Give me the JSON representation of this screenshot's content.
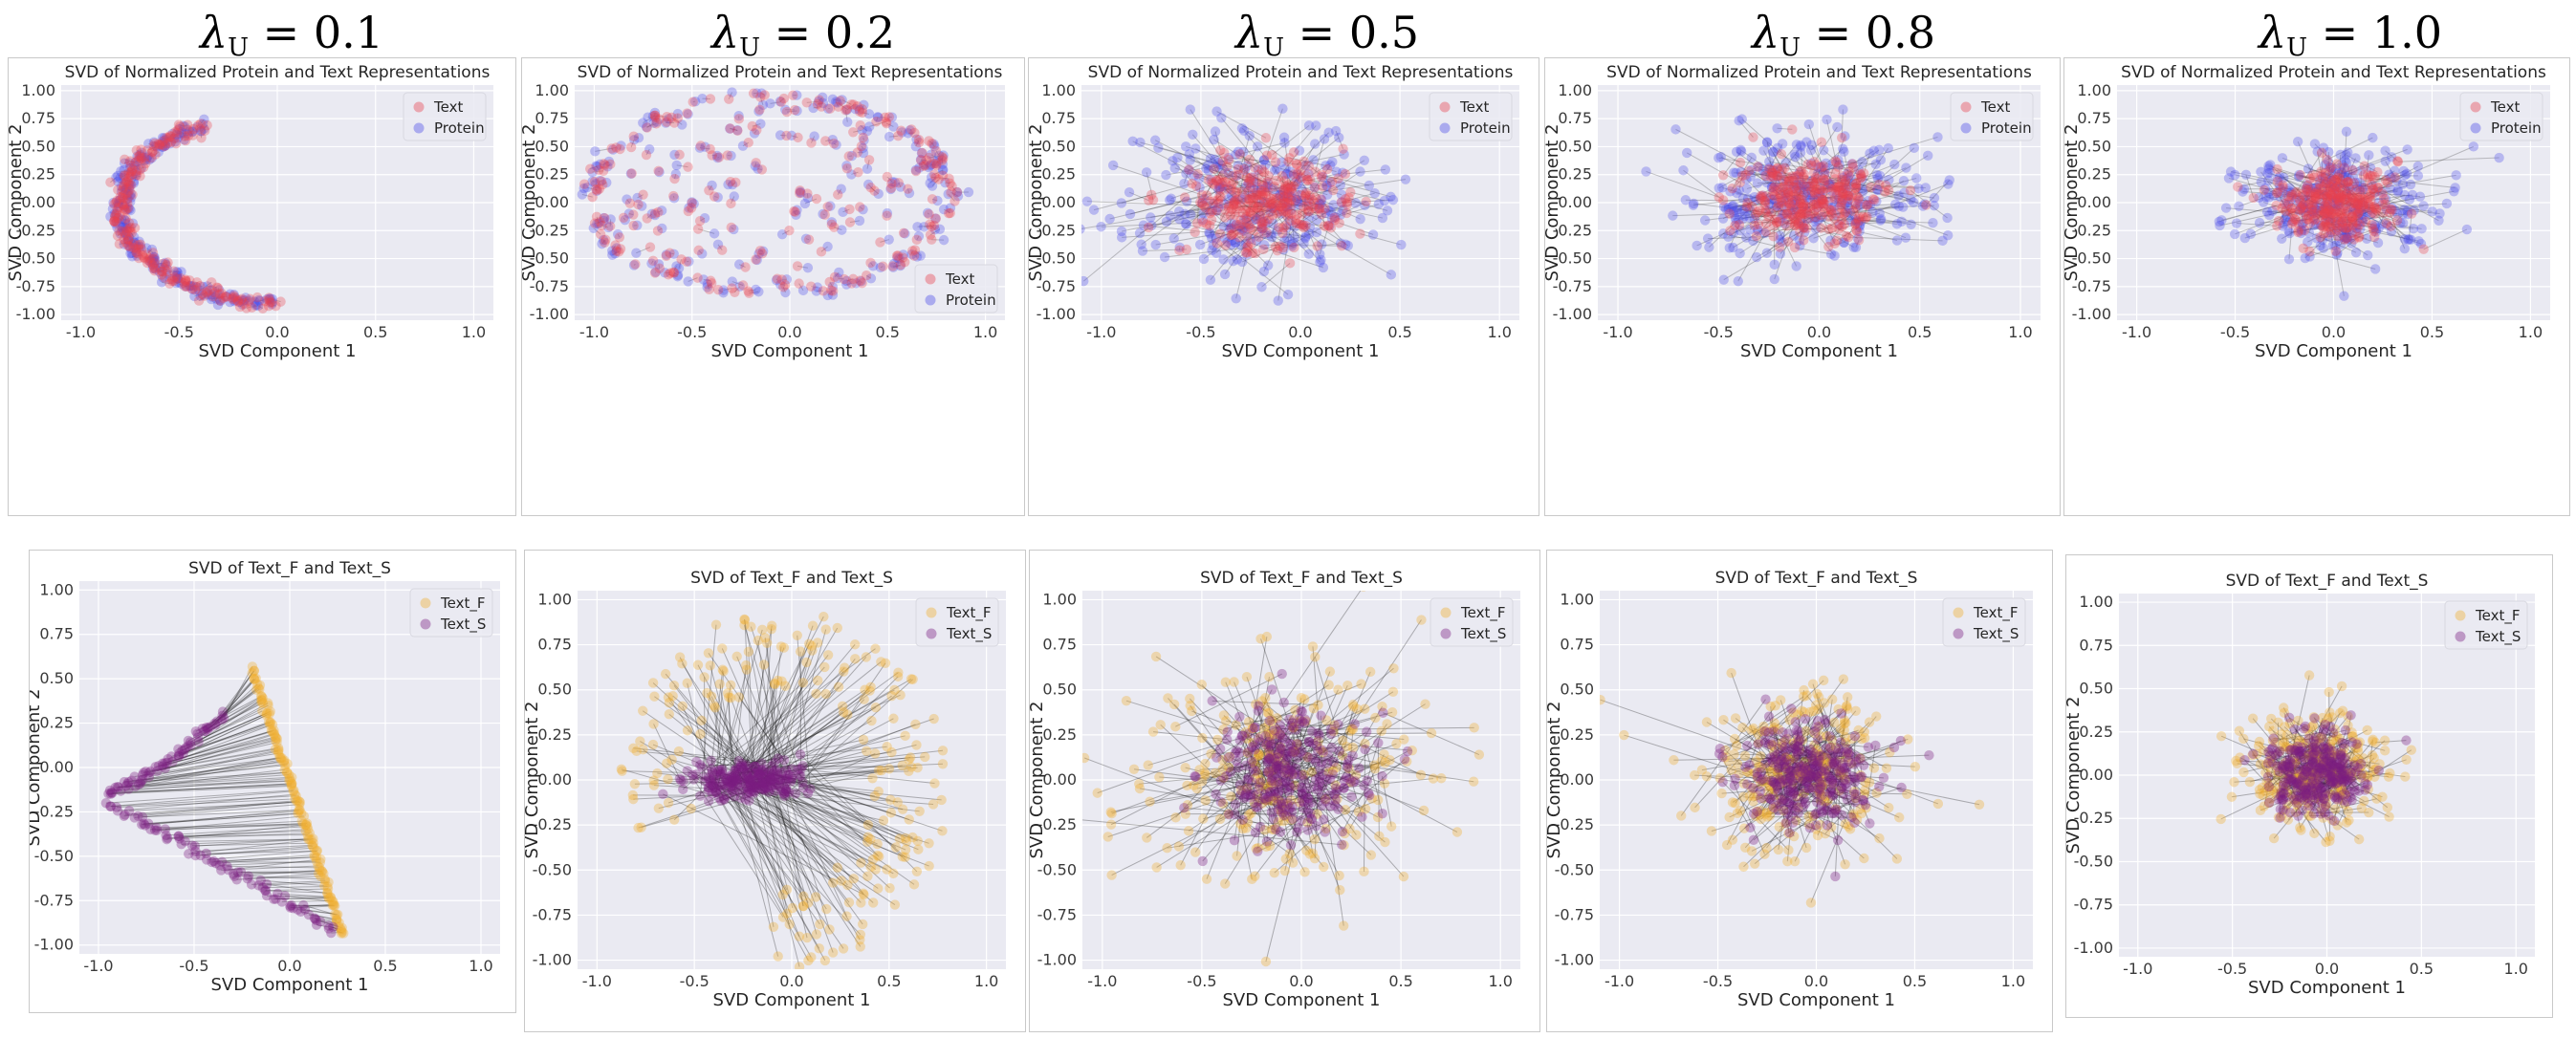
{
  "column_headers": [
    {
      "symbol": "λ",
      "sub": "U",
      "rest": " = 0.1"
    },
    {
      "symbol": "λ",
      "sub": "U",
      "rest": " = 0.2"
    },
    {
      "symbol": "λ",
      "sub": "U",
      "rest": " = 0.5"
    },
    {
      "symbol": "λ",
      "sub": "U",
      "rest": " = 0.8"
    },
    {
      "symbol": "λ",
      "sub": "U",
      "rest": " = 1.0"
    }
  ],
  "colors": {
    "text": "#e8414e",
    "protein": "#4a4ae8",
    "text_f": "#f0b030",
    "text_s": "#7a1e82",
    "plot_bg": "#eaeaf2",
    "grid": "#ffffff"
  },
  "chart_data": [
    {
      "id": "top-0",
      "type": "scatter",
      "title": "SVD of Normalized Protein and Text Representations",
      "xlabel": "SVD Component 1",
      "ylabel": "SVD Component 2",
      "xlim": [
        -1.1,
        1.1
      ],
      "ylim": [
        -1.05,
        1.05
      ],
      "xticks": [
        "-1.0",
        "-0.5",
        "0.0",
        "0.5",
        "1.0"
      ],
      "yticks": [
        "1.00",
        "0.75",
        "0.50",
        "0.25",
        "0.00",
        "-0.25",
        "-0.50",
        "-0.75",
        "-1.00"
      ],
      "legend": [
        "Text",
        "Protein"
      ],
      "legend_loc": "top-right",
      "shape": "arc",
      "lambda_u": 0.1
    },
    {
      "id": "top-1",
      "type": "scatter",
      "title": "SVD of Normalized Protein and Text Representations",
      "xlabel": "SVD Component 1",
      "ylabel": "SVD Component 2",
      "xlim": [
        -1.1,
        1.1
      ],
      "ylim": [
        -1.05,
        1.05
      ],
      "xticks": [
        "-1.0",
        "-0.5",
        "0.0",
        "0.5",
        "1.0"
      ],
      "yticks": [
        "1.00",
        "0.75",
        "0.50",
        "0.25",
        "0.00",
        "-0.25",
        "-0.50",
        "-0.75",
        "-1.00"
      ],
      "legend": [
        "Text",
        "Protein"
      ],
      "legend_loc": "bottom-right",
      "shape": "disk-edge",
      "lambda_u": 0.2
    },
    {
      "id": "top-2",
      "type": "scatter",
      "title": "SVD of Normalized Protein and Text Representations",
      "xlabel": "SVD Component 1",
      "ylabel": "SVD Component 2",
      "xlim": [
        -1.1,
        1.1
      ],
      "ylim": [
        -1.05,
        1.05
      ],
      "xticks": [
        "-1.0",
        "-0.5",
        "0.0",
        "0.5",
        "1.0"
      ],
      "yticks": [
        "1.00",
        "0.75",
        "0.50",
        "0.25",
        "0.00",
        "-0.25",
        "-0.50",
        "-0.75",
        "-1.00"
      ],
      "legend": [
        "Text",
        "Protein"
      ],
      "legend_loc": "top-right",
      "shape": "blob",
      "spread": 0.48,
      "center": [
        -0.2,
        0.0
      ],
      "lambda_u": 0.5
    },
    {
      "id": "top-3",
      "type": "scatter",
      "title": "SVD of Normalized Protein and Text Representations",
      "xlabel": "SVD Component 1",
      "ylabel": "SVD Component 2",
      "xlim": [
        -1.1,
        1.1
      ],
      "ylim": [
        -1.05,
        1.05
      ],
      "xticks": [
        "-1.0",
        "-0.5",
        "0.0",
        "0.5",
        "1.0"
      ],
      "yticks": [
        "1.00",
        "0.75",
        "0.50",
        "0.25",
        "0.00",
        "-0.25",
        "-0.50",
        "-0.75",
        "-1.00"
      ],
      "legend": [
        "Text",
        "Protein"
      ],
      "legend_loc": "top-right",
      "shape": "blob",
      "spread": 0.42,
      "center": [
        -0.05,
        0.05
      ],
      "lambda_u": 0.8
    },
    {
      "id": "top-4",
      "type": "scatter",
      "title": "SVD of Normalized Protein and Text Representations",
      "xlabel": "SVD Component 1",
      "ylabel": "SVD Component 2",
      "xlim": [
        -1.1,
        1.1
      ],
      "ylim": [
        -1.05,
        1.05
      ],
      "xticks": [
        "-1.0",
        "-0.5",
        "0.0",
        "0.5",
        "1.0"
      ],
      "yticks": [
        "1.00",
        "0.75",
        "0.50",
        "0.25",
        "0.00",
        "-0.25",
        "-0.50",
        "-0.75",
        "-1.00"
      ],
      "legend": [
        "Text",
        "Protein"
      ],
      "legend_loc": "top-right",
      "shape": "blob",
      "spread": 0.35,
      "center": [
        0.0,
        0.0
      ],
      "lambda_u": 1.0
    },
    {
      "id": "bot-0",
      "type": "scatter",
      "title": "SVD of Text_F and Text_S",
      "xlabel": "SVD Component 1",
      "ylabel": "SVD Component 2",
      "xlim": [
        -1.1,
        1.1
      ],
      "ylim": [
        -1.05,
        1.05
      ],
      "xticks": [
        "-1.0",
        "-0.5",
        "0.0",
        "0.5",
        "1.0"
      ],
      "yticks": [
        "1.00",
        "0.75",
        "0.50",
        "0.25",
        "0.00",
        "-0.25",
        "-0.50",
        "-0.75",
        "-1.00"
      ],
      "legend": [
        "Text_F",
        "Text_S"
      ],
      "legend_loc": "top-right",
      "shape": "triangle",
      "lambda_u": 0.1
    },
    {
      "id": "bot-1",
      "type": "scatter",
      "title": "SVD of Text_F and Text_S",
      "xlabel": "SVD Component 1",
      "ylabel": "SVD Component 2",
      "xlim": [
        -1.1,
        1.1
      ],
      "ylim": [
        -1.05,
        1.05
      ],
      "xticks": [
        "-1.0",
        "-0.5",
        "0.0",
        "0.5",
        "1.0"
      ],
      "yticks": [
        "1.00",
        "0.75",
        "0.50",
        "0.25",
        "0.00",
        "-0.25",
        "-0.50",
        "-0.75",
        "-1.00"
      ],
      "legend": [
        "Text_F",
        "Text_S"
      ],
      "legend_loc": "top-right",
      "shape": "ring",
      "lambda_u": 0.2
    },
    {
      "id": "bot-2",
      "type": "scatter",
      "title": "SVD of Text_F and Text_S",
      "xlabel": "SVD Component 1",
      "ylabel": "SVD Component 2",
      "xlim": [
        -1.1,
        1.1
      ],
      "ylim": [
        -1.05,
        1.05
      ],
      "xticks": [
        "-1.0",
        "-0.5",
        "0.0",
        "0.5",
        "1.0"
      ],
      "yticks": [
        "1.00",
        "0.75",
        "0.50",
        "0.25",
        "0.00",
        "-0.25",
        "-0.50",
        "-0.75",
        "-1.00"
      ],
      "legend": [
        "Text_F",
        "Text_S"
      ],
      "legend_loc": "top-right",
      "shape": "cloud",
      "spread_f": 0.38,
      "spread_s": 0.18,
      "lambda_u": 0.5
    },
    {
      "id": "bot-3",
      "type": "scatter",
      "title": "SVD of Text_F and Text_S",
      "xlabel": "SVD Component 1",
      "ylabel": "SVD Component 2",
      "xlim": [
        -1.1,
        1.1
      ],
      "ylim": [
        -1.05,
        1.05
      ],
      "xticks": [
        "-1.0",
        "-0.5",
        "0.0",
        "0.5",
        "1.0"
      ],
      "yticks": [
        "1.00",
        "0.75",
        "0.50",
        "0.25",
        "0.00",
        "-0.25",
        "-0.50",
        "-0.75",
        "-1.00"
      ],
      "legend": [
        "Text_F",
        "Text_S"
      ],
      "legend_loc": "top-right",
      "shape": "cloud",
      "spread_f": 0.26,
      "spread_s": 0.16,
      "lambda_u": 0.8
    },
    {
      "id": "bot-4",
      "type": "scatter",
      "title": "SVD of Text_F and Text_S",
      "xlabel": "SVD Component 1",
      "ylabel": "SVD Component 2",
      "xlim": [
        -1.1,
        1.1
      ],
      "ylim": [
        -1.05,
        1.05
      ],
      "xticks": [
        "-1.0",
        "-0.5",
        "0.0",
        "0.5",
        "1.0"
      ],
      "yticks": [
        "1.00",
        "0.75",
        "0.50",
        "0.25",
        "0.00",
        "-0.25",
        "-0.50",
        "-0.75",
        "-1.00"
      ],
      "legend": [
        "Text_F",
        "Text_S"
      ],
      "legend_loc": "top-right",
      "shape": "cloud",
      "spread_f": 0.2,
      "spread_s": 0.13,
      "lambda_u": 1.0
    }
  ]
}
